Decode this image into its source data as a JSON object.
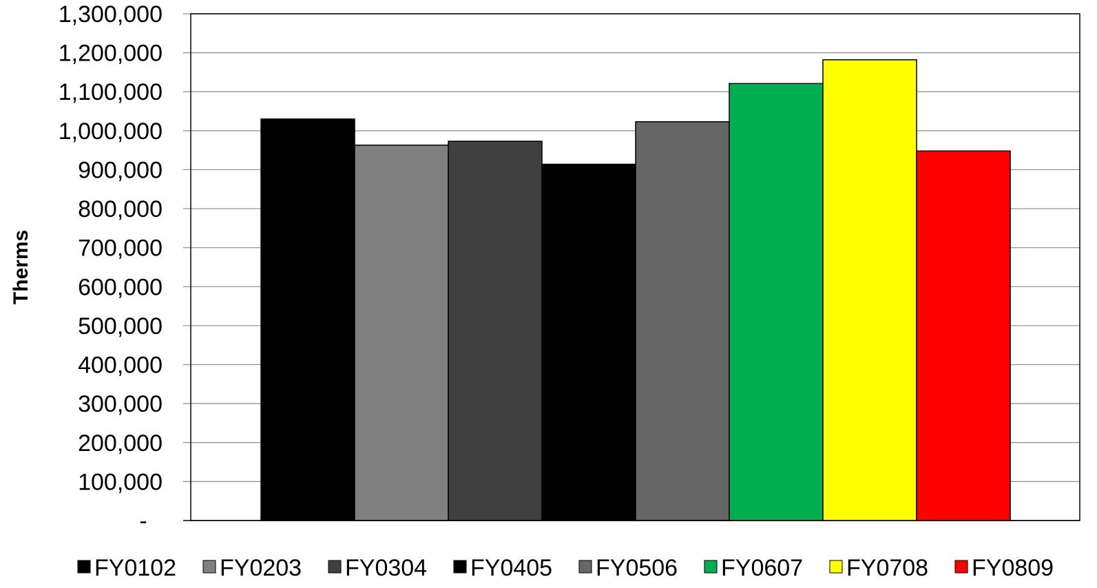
{
  "chart_data": {
    "type": "bar",
    "title": "",
    "xlabel": "",
    "ylabel": "Therms",
    "ylim": [
      0,
      1300000
    ],
    "ytick_step": 100000,
    "zero_tick_label": "-",
    "grid": true,
    "legend_position": "bottom",
    "series": [
      {
        "name": "FY0102",
        "value": 1030000,
        "color": "#000000"
      },
      {
        "name": "FY0203",
        "value": 963000,
        "color": "#808080"
      },
      {
        "name": "FY0304",
        "value": 973000,
        "color": "#404040"
      },
      {
        "name": "FY0405",
        "value": 914000,
        "color": "#000000"
      },
      {
        "name": "FY0506",
        "value": 1023000,
        "color": "#666666"
      },
      {
        "name": "FY0607",
        "value": 1121000,
        "color": "#00B050"
      },
      {
        "name": "FY0708",
        "value": 1182000,
        "color": "#FFFF00"
      },
      {
        "name": "FY0809",
        "value": 948000,
        "color": "#FF0000"
      }
    ]
  }
}
